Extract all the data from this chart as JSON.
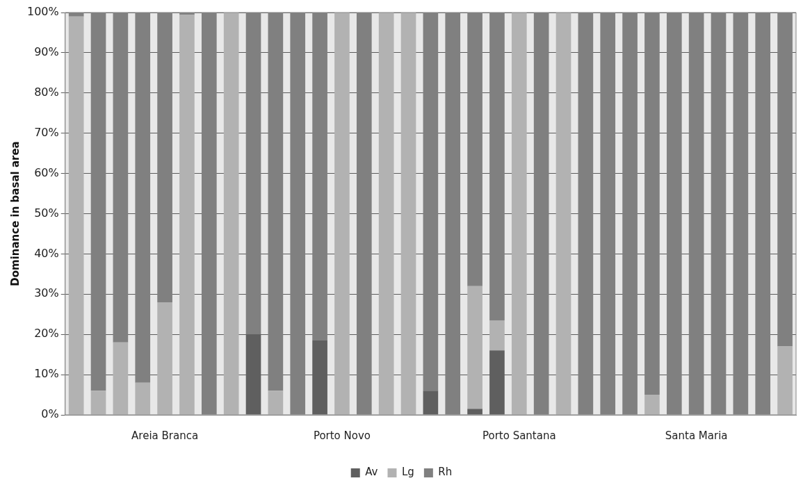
{
  "chart_data": {
    "type": "bar",
    "stacked": true,
    "ylabel": "Dominance in basal area",
    "categories": [
      null,
      null,
      null,
      null,
      "Areia Branca",
      null,
      null,
      null,
      null,
      null,
      null,
      null,
      "Porto Novo",
      null,
      null,
      null,
      null,
      null,
      null,
      null,
      "Porto Santana",
      null,
      null,
      null,
      null,
      null,
      null,
      null,
      "Santa Maria",
      null,
      null,
      null,
      null
    ],
    "series": [
      {
        "name": "Av",
        "color": "#5f5f5f",
        "values": [
          0,
          0,
          0,
          0,
          0,
          0,
          0,
          0,
          20,
          0,
          0,
          18.5,
          0,
          0,
          0,
          0,
          6,
          0,
          1.5,
          16,
          0,
          0,
          0,
          0,
          0,
          0,
          0,
          0,
          0,
          0,
          0,
          0,
          0
        ]
      },
      {
        "name": "Lg",
        "color": "#b2b2b2",
        "values": [
          99,
          6,
          18,
          8,
          28,
          99.4,
          0,
          100,
          0,
          6,
          0,
          0,
          100,
          0,
          100,
          100,
          0,
          0,
          30.5,
          7.5,
          100,
          0,
          100,
          0,
          0,
          0,
          5,
          0,
          0,
          0,
          0,
          0,
          17
        ]
      },
      {
        "name": "Rh",
        "color": "#808080",
        "values": [
          1,
          94,
          82,
          92,
          72,
          0.6,
          100,
          0,
          80,
          94,
          100,
          81.5,
          0,
          100,
          0,
          0,
          94,
          100,
          68,
          76.5,
          0,
          100,
          0,
          100,
          100,
          100,
          95,
          100,
          100,
          100,
          100,
          100,
          83
        ]
      }
    ],
    "ylim": [
      0,
      100
    ],
    "yticks": [
      {
        "value": 0,
        "label": "0%"
      },
      {
        "value": 10,
        "label": "10%"
      },
      {
        "value": 20,
        "label": "20%"
      },
      {
        "value": 30,
        "label": "30%"
      },
      {
        "value": 40,
        "label": "40%"
      },
      {
        "value": 50,
        "label": "50%"
      },
      {
        "value": 60,
        "label": "60%"
      },
      {
        "value": 70,
        "label": "70%"
      },
      {
        "value": 80,
        "label": "80%"
      },
      {
        "value": 90,
        "label": "90%"
      },
      {
        "value": 100,
        "label": "100%"
      }
    ],
    "grid": "y",
    "legend": "bottom"
  }
}
